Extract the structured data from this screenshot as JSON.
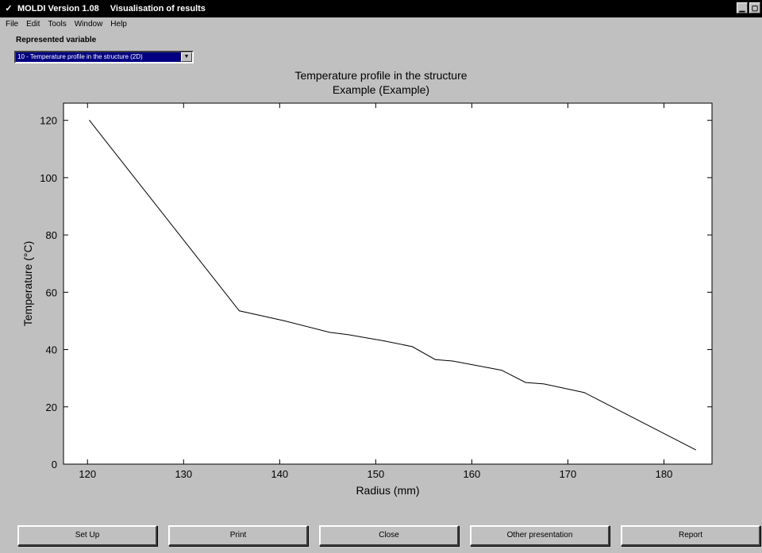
{
  "window": {
    "app_icon": "app-icon",
    "app_name": "MOLDI Version 1.08",
    "window_title": "Visualisation of results",
    "controls": [
      "minimize-icon",
      "maximize-icon"
    ]
  },
  "menu": {
    "items": [
      "File",
      "Edit",
      "Tools",
      "Window",
      "Help"
    ]
  },
  "variable": {
    "label": "Represented variable",
    "selected": "10 - Temperature profile in the structure (2D)"
  },
  "buttons": {
    "setup": "Set Up",
    "print": "Print",
    "close": "Close",
    "other": "Other presentation",
    "report": "Report"
  },
  "chart_data": {
    "type": "line",
    "title": "Temperature profile in the structure",
    "subtitle": "Example (Example)",
    "xlabel": "Radius (mm)",
    "ylabel": "Temperature (°C)",
    "xlim": [
      117.5,
      185
    ],
    "ylim": [
      0,
      126
    ],
    "xticks": [
      120,
      130,
      140,
      150,
      160,
      170,
      180
    ],
    "yticks": [
      0,
      20,
      40,
      60,
      80,
      100,
      120
    ],
    "grid": false,
    "line_color": "#000000",
    "x": [
      120.2,
      135.8,
      140.5,
      145.2,
      147.1,
      150.9,
      153.8,
      156.2,
      158.0,
      163.1,
      165.6,
      167.5,
      171.7,
      183.3
    ],
    "y": [
      120,
      53.5,
      50.0,
      46.0,
      45.2,
      43.0,
      41.0,
      36.5,
      36.0,
      32.8,
      28.5,
      28.0,
      25.0,
      5.0
    ]
  }
}
